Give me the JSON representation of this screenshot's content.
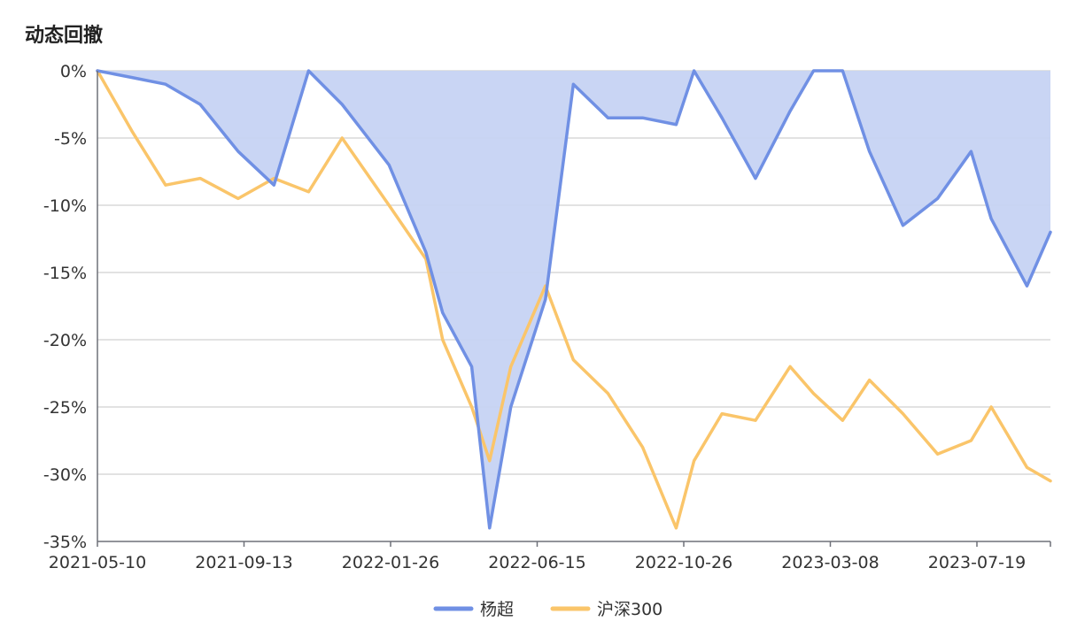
{
  "title": "动态回撤",
  "colors": {
    "series1": "#7090e4",
    "series1_area": "#c6d3f3",
    "series2": "#fac56a",
    "grid": "#d9d9d9",
    "axis": "#6e7079"
  },
  "chart_data": {
    "type": "area",
    "title": "动态回撤",
    "xlabel": "",
    "ylabel": "",
    "x_tick_labels": [
      "2021-05-10",
      "2021-09-13",
      "2022-01-26",
      "2022-06-15",
      "2022-10-26",
      "2023-03-08",
      "2023-07-19"
    ],
    "y_ticks": [
      0,
      -5,
      -10,
      -15,
      -20,
      -25,
      -30,
      -35
    ],
    "y_tick_labels": [
      "0%",
      "-5%",
      "-10%",
      "-15%",
      "-20%",
      "-25%",
      "-30%",
      "-35%"
    ],
    "ylim": [
      -35,
      0
    ],
    "grid": true,
    "legend_position": "bottom-center",
    "x": [
      "2021-05-10",
      "2021-06-10",
      "2021-07-10",
      "2021-08-10",
      "2021-09-13",
      "2021-10-15",
      "2021-11-15",
      "2021-12-15",
      "2022-01-26",
      "2022-02-28",
      "2022-03-15",
      "2022-04-10",
      "2022-04-26",
      "2022-05-15",
      "2022-06-15",
      "2022-07-10",
      "2022-08-10",
      "2022-09-10",
      "2022-10-10",
      "2022-10-26",
      "2022-11-20",
      "2022-12-20",
      "2023-01-20",
      "2023-02-10",
      "2023-03-08",
      "2023-04-01",
      "2023-05-01",
      "2023-06-01",
      "2023-07-01",
      "2023-07-19",
      "2023-08-20",
      "2023-09-10"
    ],
    "series": [
      {
        "name": "杨超",
        "values": [
          0,
          -0.5,
          -1.0,
          -2.5,
          -6.0,
          -8.5,
          0,
          -2.5,
          -7.0,
          -13.5,
          -18.0,
          -22.0,
          -34.0,
          -25.0,
          -17.0,
          -1.0,
          -3.5,
          -3.5,
          -4.0,
          0,
          -3.5,
          -8.0,
          -3.0,
          0,
          0,
          -6.0,
          -11.5,
          -9.5,
          -6.0,
          -11.0,
          -16.0,
          -12.0
        ]
      },
      {
        "name": "沪深300",
        "values": [
          0,
          -4.5,
          -8.5,
          -8.0,
          -9.5,
          -8.0,
          -9.0,
          -5.0,
          -10.0,
          -14.0,
          -20.0,
          -25.0,
          -29.0,
          -22.0,
          -16.0,
          -21.5,
          -24.0,
          -28.0,
          -34.0,
          -29.0,
          -25.5,
          -26.0,
          -22.0,
          -24.0,
          -26.0,
          -23.0,
          -25.5,
          -28.5,
          -27.5,
          -25.0,
          -29.5,
          -30.5
        ]
      }
    ]
  }
}
